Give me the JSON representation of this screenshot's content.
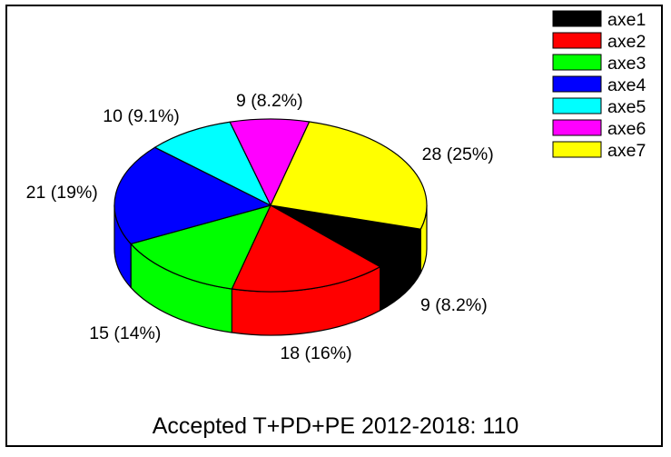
{
  "chart_data": {
    "type": "pie",
    "style": "3d",
    "title": "Accepted T+PD+PE 2012-2018: 110",
    "total": 110,
    "slices": [
      {
        "name": "axe1",
        "value": 9,
        "label": "9 (8.2%)",
        "color": "#000000"
      },
      {
        "name": "axe2",
        "value": 18,
        "label": "18 (16%)",
        "color": "#ff0000"
      },
      {
        "name": "axe3",
        "value": 15,
        "label": "15 (14%)",
        "color": "#00ff00"
      },
      {
        "name": "axe4",
        "value": 21,
        "label": "21 (19%)",
        "color": "#0000ff"
      },
      {
        "name": "axe5",
        "value": 10,
        "label": "10 (9.1%)",
        "color": "#00ffff"
      },
      {
        "name": "axe6",
        "value": 9,
        "label": "9 (8.2%)",
        "color": "#ff00ff"
      },
      {
        "name": "axe7",
        "value": 28,
        "label": "28 (25%)",
        "color": "#ffff00"
      }
    ],
    "legend_position": "top-right"
  }
}
